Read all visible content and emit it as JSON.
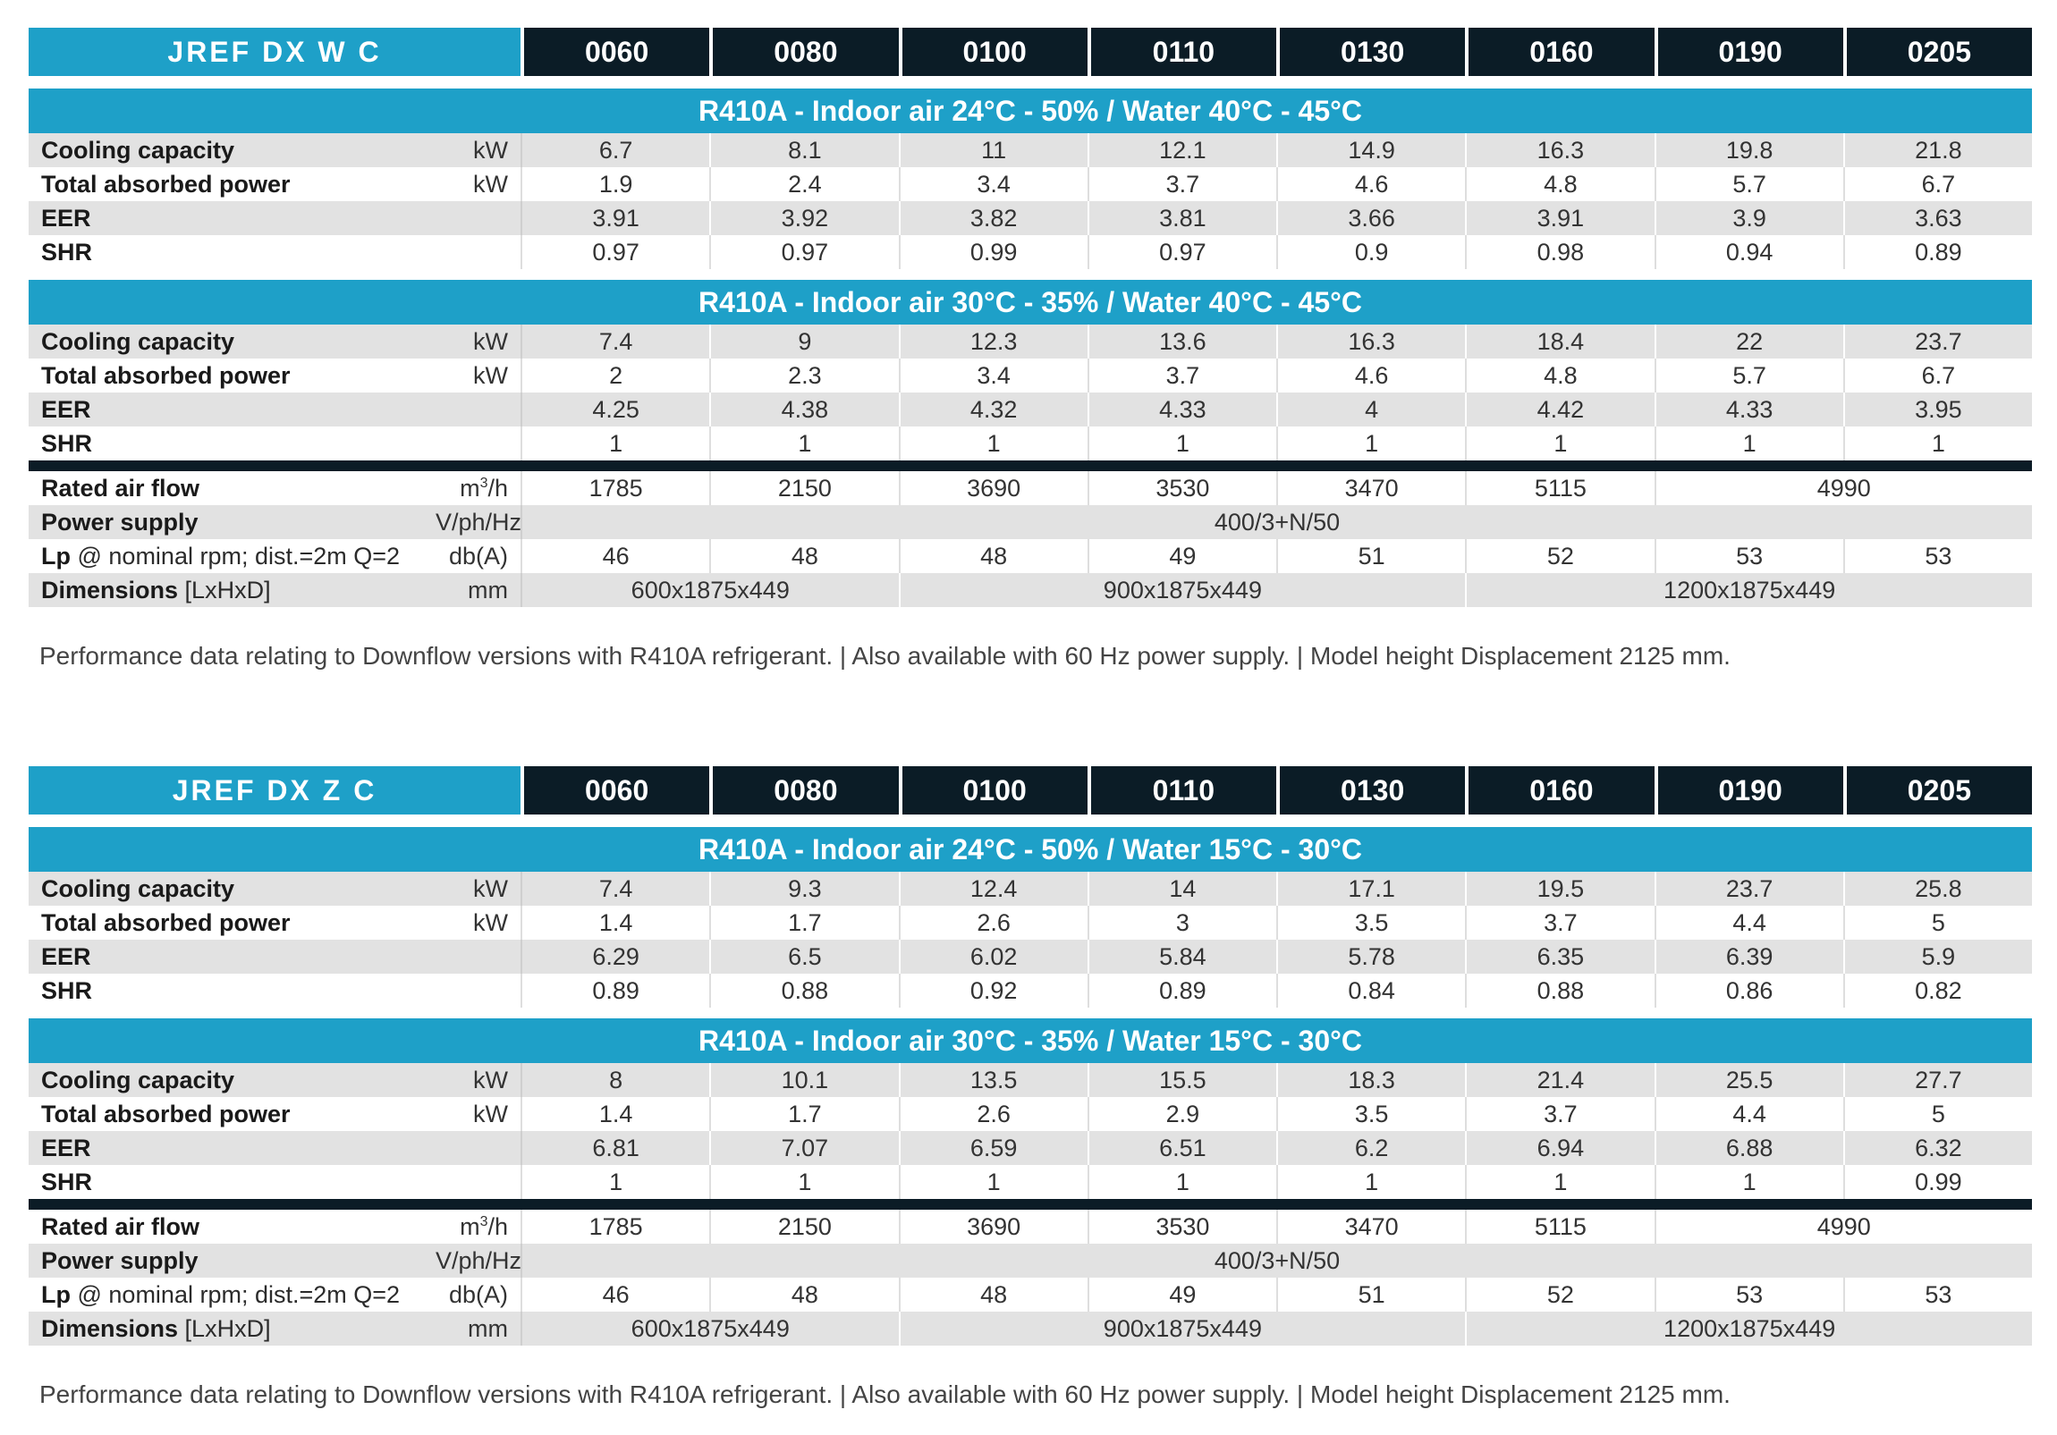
{
  "tables": [
    {
      "series": "JREF DX W C",
      "models": [
        "0060",
        "0080",
        "0100",
        "0110",
        "0130",
        "0160",
        "0190",
        "0205"
      ],
      "conditions": [
        {
          "title": "R410A - Indoor air 24°C - 50% / Water 40°C - 45°C",
          "rows": [
            {
              "label": "Cooling capacity",
              "unit": "kW",
              "values": [
                "6.7",
                "8.1",
                "11",
                "12.1",
                "14.9",
                "16.3",
                "19.8",
                "21.8"
              ]
            },
            {
              "label": "Total absorbed power",
              "unit": "kW",
              "values": [
                "1.9",
                "2.4",
                "3.4",
                "3.7",
                "4.6",
                "4.8",
                "5.7",
                "6.7"
              ]
            },
            {
              "label": "EER",
              "unit": "",
              "values": [
                "3.91",
                "3.92",
                "3.82",
                "3.81",
                "3.66",
                "3.91",
                "3.9",
                "3.63"
              ]
            },
            {
              "label": "SHR",
              "unit": "",
              "values": [
                "0.97",
                "0.97",
                "0.99",
                "0.97",
                "0.9",
                "0.98",
                "0.94",
                "0.89"
              ]
            }
          ]
        },
        {
          "title": "R410A - Indoor air 30°C - 35% / Water 40°C - 45°C",
          "rows": [
            {
              "label": "Cooling capacity",
              "unit": "kW",
              "values": [
                "7.4",
                "9",
                "12.3",
                "13.6",
                "16.3",
                "18.4",
                "22",
                "23.7"
              ]
            },
            {
              "label": "Total absorbed power",
              "unit": "kW",
              "values": [
                "2",
                "2.3",
                "3.4",
                "3.7",
                "4.6",
                "4.8",
                "5.7",
                "6.7"
              ]
            },
            {
              "label": "EER",
              "unit": "",
              "values": [
                "4.25",
                "4.38",
                "4.32",
                "4.33",
                "4",
                "4.42",
                "4.33",
                "3.95"
              ]
            },
            {
              "label": "SHR",
              "unit": "",
              "values": [
                "1",
                "1",
                "1",
                "1",
                "1",
                "1",
                "1",
                "1"
              ]
            }
          ]
        }
      ],
      "specs": {
        "air_flow": {
          "label": "Rated air flow",
          "unit_base": "m",
          "unit_sup": "3",
          "unit_tail": "/h",
          "values": [
            "1785",
            "2150",
            "3690",
            "3530",
            "3470",
            "5115"
          ],
          "merged_value": "4990"
        },
        "power_supply": {
          "label": "Power supply",
          "unit": "V/ph/Hz",
          "value": "400/3+N/50"
        },
        "lp": {
          "label": "Lp",
          "label_suffix": " @ nominal rpm; dist.=2m Q=2",
          "unit": "db(A)",
          "values": [
            "46",
            "48",
            "48",
            "49",
            "51",
            "52",
            "53",
            "53"
          ]
        },
        "dimensions": {
          "label": "Dimensions",
          "label_suffix": " [LxHxD]",
          "unit": "mm",
          "groups": [
            "600x1875x449",
            "900x1875x449",
            "1200x1875x449"
          ]
        }
      },
      "note": "Performance data relating to Downflow versions with R410A refrigerant. | Also available with 60 Hz power supply. | Model height Displacement 2125 mm."
    },
    {
      "series": "JREF DX Z C",
      "models": [
        "0060",
        "0080",
        "0100",
        "0110",
        "0130",
        "0160",
        "0190",
        "0205"
      ],
      "conditions": [
        {
          "title": "R410A - Indoor air 24°C - 50% / Water 15°C - 30°C",
          "rows": [
            {
              "label": "Cooling capacity",
              "unit": "kW",
              "values": [
                "7.4",
                "9.3",
                "12.4",
                "14",
                "17.1",
                "19.5",
                "23.7",
                "25.8"
              ]
            },
            {
              "label": "Total absorbed power",
              "unit": "kW",
              "values": [
                "1.4",
                "1.7",
                "2.6",
                "3",
                "3.5",
                "3.7",
                "4.4",
                "5"
              ]
            },
            {
              "label": "EER",
              "unit": "",
              "values": [
                "6.29",
                "6.5",
                "6.02",
                "5.84",
                "5.78",
                "6.35",
                "6.39",
                "5.9"
              ]
            },
            {
              "label": "SHR",
              "unit": "",
              "values": [
                "0.89",
                "0.88",
                "0.92",
                "0.89",
                "0.84",
                "0.88",
                "0.86",
                "0.82"
              ]
            }
          ]
        },
        {
          "title": "R410A - Indoor air 30°C - 35% / Water 15°C - 30°C",
          "rows": [
            {
              "label": "Cooling capacity",
              "unit": "kW",
              "values": [
                "8",
                "10.1",
                "13.5",
                "15.5",
                "18.3",
                "21.4",
                "25.5",
                "27.7"
              ]
            },
            {
              "label": "Total absorbed power",
              "unit": "kW",
              "values": [
                "1.4",
                "1.7",
                "2.6",
                "2.9",
                "3.5",
                "3.7",
                "4.4",
                "5"
              ]
            },
            {
              "label": "EER",
              "unit": "",
              "values": [
                "6.81",
                "7.07",
                "6.59",
                "6.51",
                "6.2",
                "6.94",
                "6.88",
                "6.32"
              ]
            },
            {
              "label": "SHR",
              "unit": "",
              "values": [
                "1",
                "1",
                "1",
                "1",
                "1",
                "1",
                "1",
                "0.99"
              ]
            }
          ]
        }
      ],
      "specs": {
        "air_flow": {
          "label": "Rated air flow",
          "unit_base": "m",
          "unit_sup": "3",
          "unit_tail": "/h",
          "values": [
            "1785",
            "2150",
            "3690",
            "3530",
            "3470",
            "5115"
          ],
          "merged_value": "4990"
        },
        "power_supply": {
          "label": "Power supply",
          "unit": "V/ph/Hz",
          "value": "400/3+N/50"
        },
        "lp": {
          "label": "Lp",
          "label_suffix": " @ nominal rpm; dist.=2m Q=2",
          "unit": "db(A)",
          "values": [
            "46",
            "48",
            "48",
            "49",
            "51",
            "52",
            "53",
            "53"
          ]
        },
        "dimensions": {
          "label": "Dimensions",
          "label_suffix": " [LxHxD]",
          "unit": "mm",
          "groups": [
            "600x1875x449",
            "900x1875x449",
            "1200x1875x449"
          ]
        }
      },
      "note": "Performance data relating to Downflow versions with R410A refrigerant. | Also available with 60 Hz power supply. | Model height Displacement 2125 mm."
    }
  ]
}
